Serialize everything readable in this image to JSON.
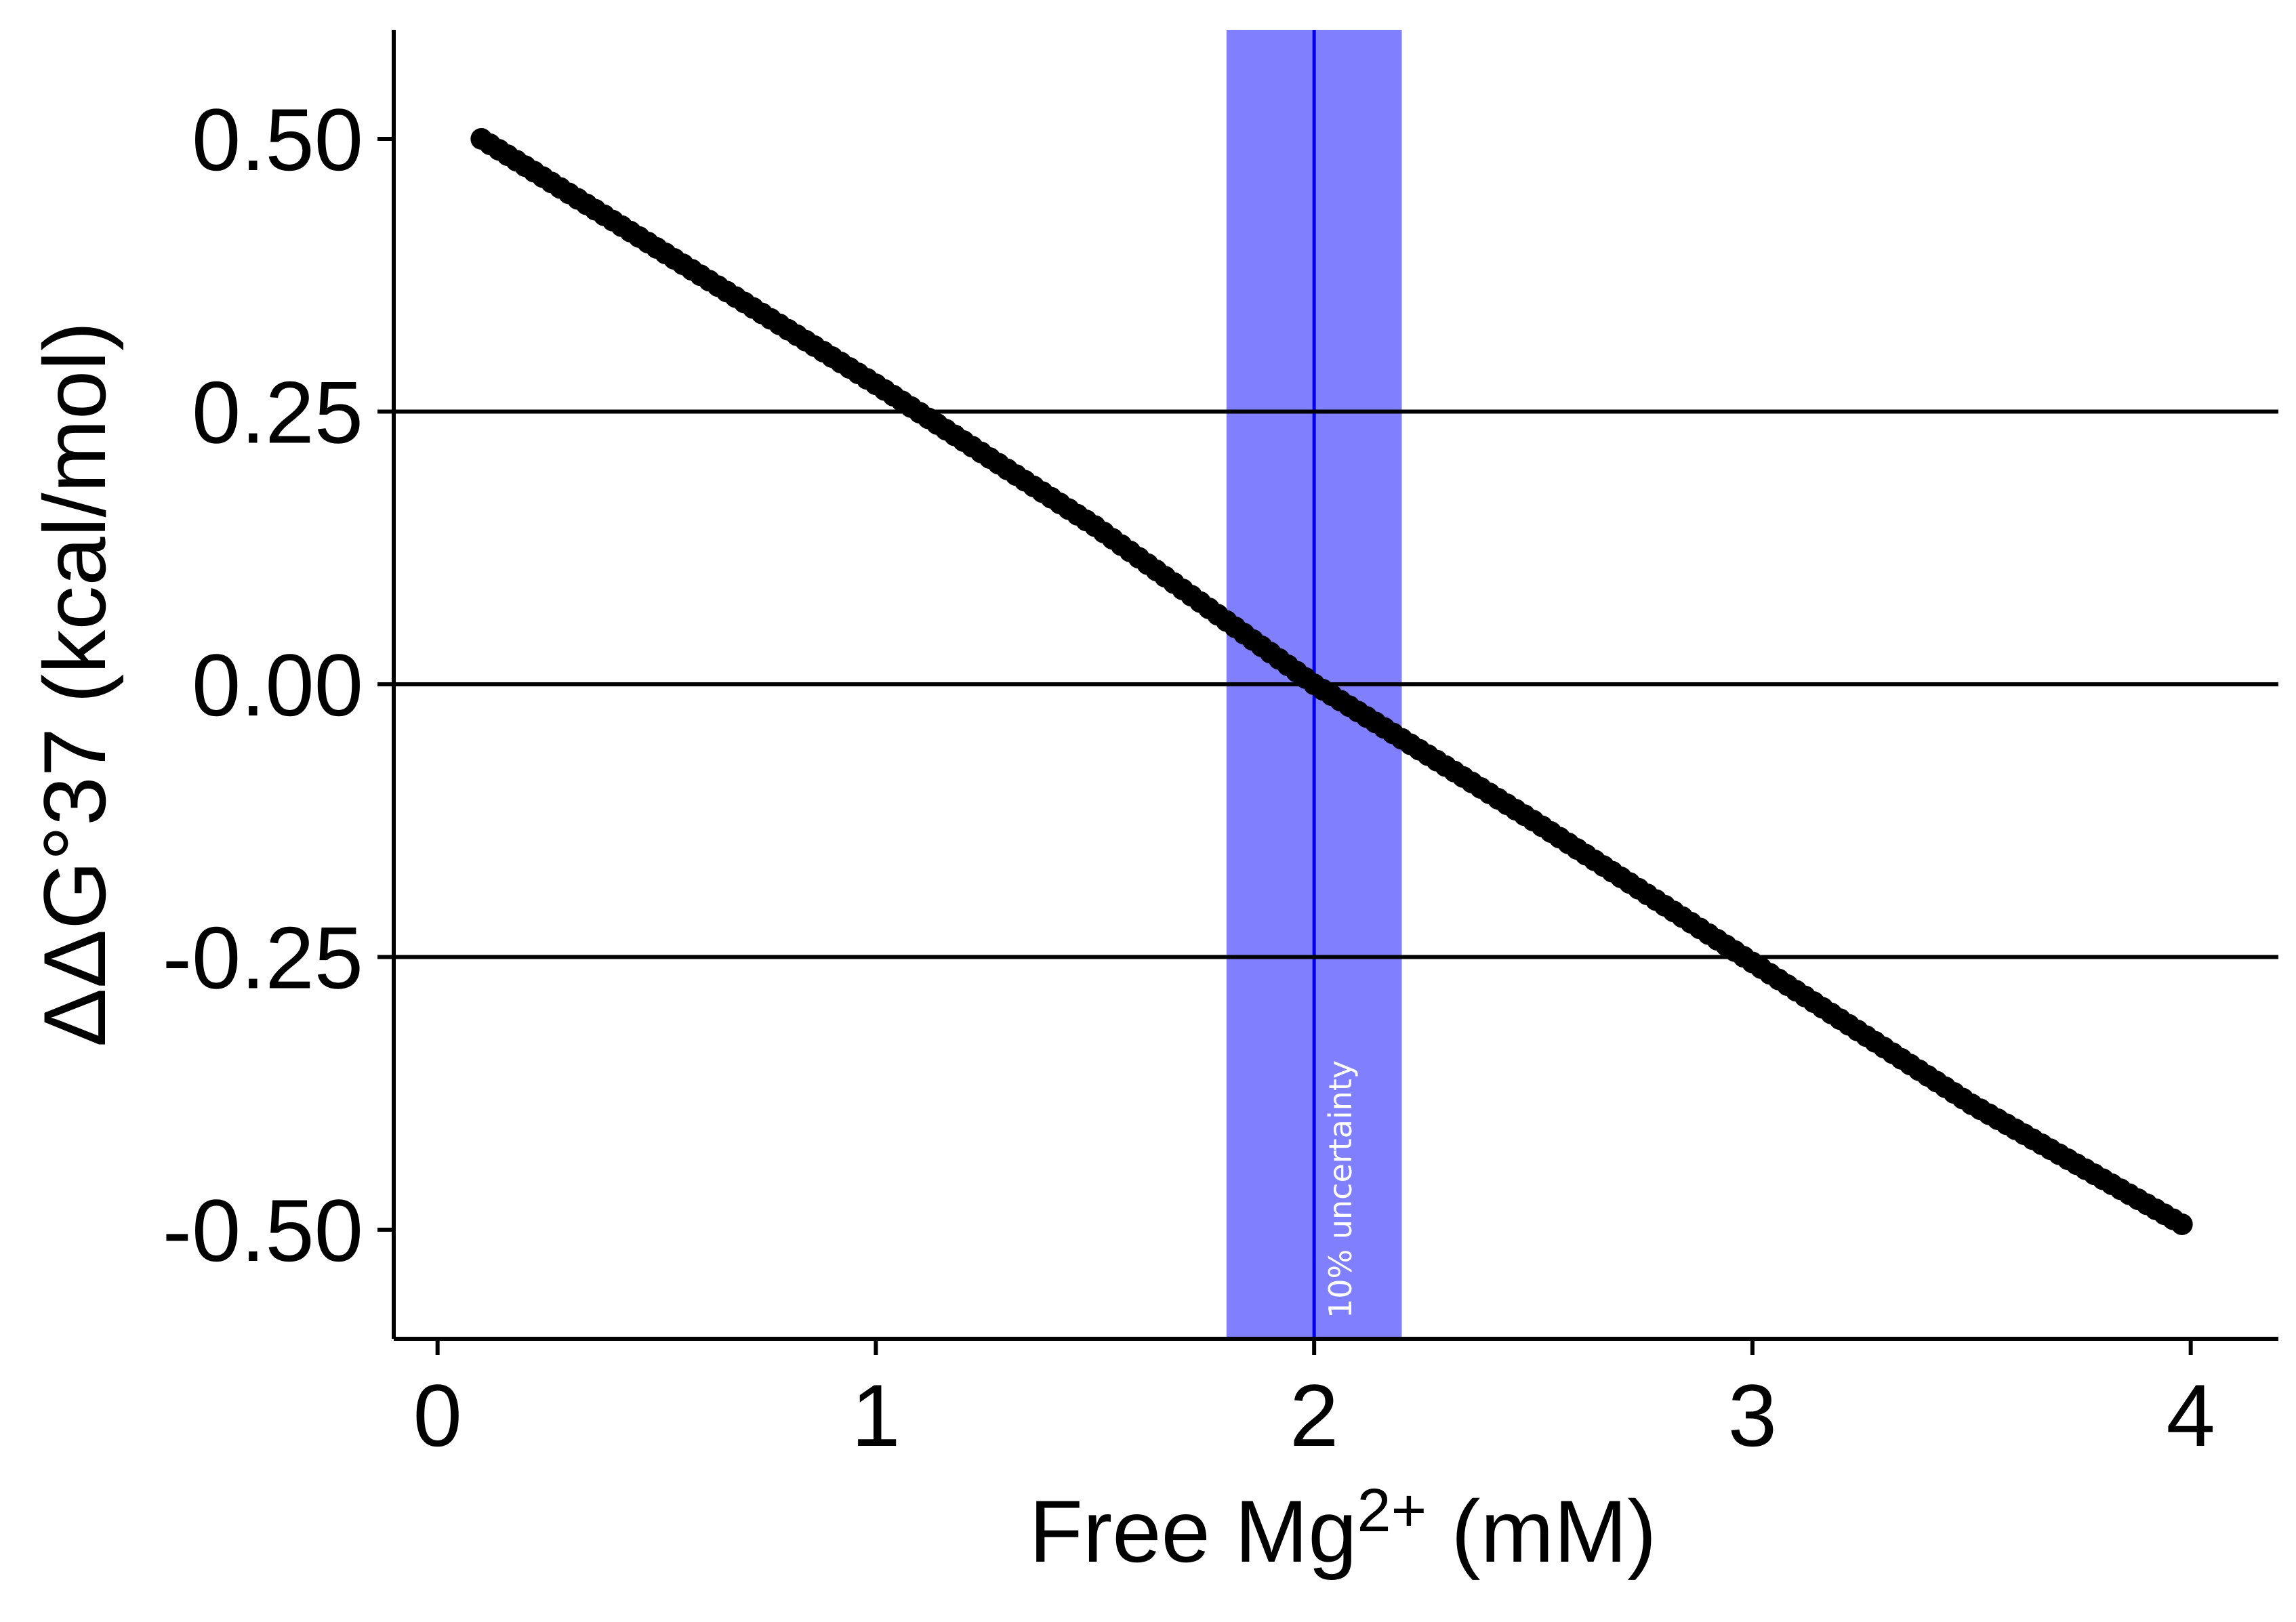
{
  "chart_data": {
    "type": "scatter",
    "xlabel": "Free Mg2+ (mM)",
    "xlabel_parts": {
      "base": "Free Mg",
      "sup": "2+",
      "unit": " (mM)"
    },
    "ylabel": "ΔΔG°37 (kcal/mol)",
    "xlim": [
      -0.1,
      4.2
    ],
    "ylim": [
      -0.6,
      0.6
    ],
    "x_ticks": [
      0,
      1,
      2,
      3,
      4
    ],
    "x_tick_labels": [
      "0",
      "1",
      "2",
      "3",
      "4"
    ],
    "y_ticks": [
      0.5,
      0.25,
      0.0,
      -0.25,
      -0.5
    ],
    "y_tick_labels": [
      "0.50",
      "0.25",
      "0.00",
      "-0.25",
      "-0.50"
    ],
    "hlines": [
      0.25,
      0.0,
      -0.25
    ],
    "vline": 2.0,
    "band": {
      "xmin": 1.8,
      "xmax": 2.2,
      "label": "10% uncertainty"
    },
    "curve": {
      "x_start": 0.1,
      "x_end": 3.98,
      "x_step": 0.02
    },
    "series": [
      {
        "x": [
          0.1,
          0.5,
          1.0,
          1.5,
          2.0,
          2.5,
          3.0,
          3.5,
          3.98
        ],
        "y": [
          0.5,
          0.4,
          0.275,
          0.145,
          0.0,
          -0.125,
          -0.255,
          -0.385,
          -0.495
        ]
      }
    ],
    "grid": false,
    "colors": {
      "points": "#000000",
      "band": "#8080ff",
      "vline": "#0000ee",
      "axes": "#000000"
    }
  }
}
